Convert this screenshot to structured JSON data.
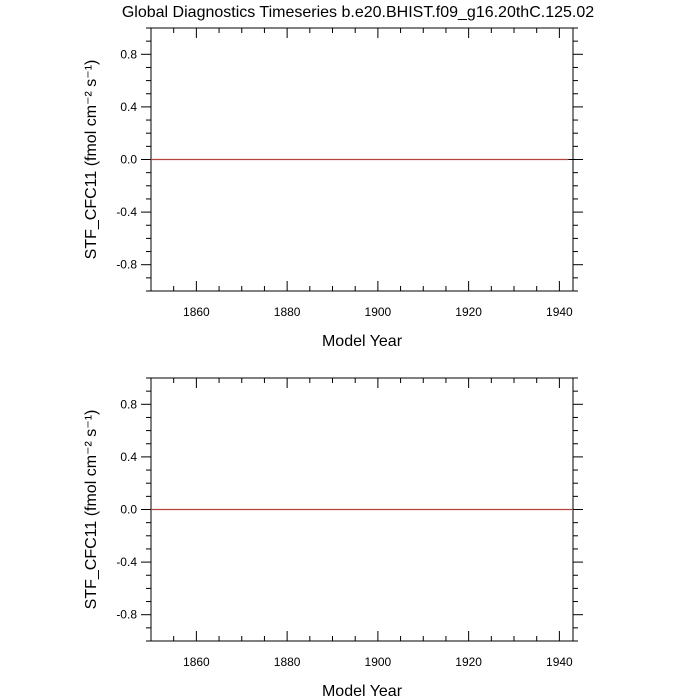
{
  "title": "Global Diagnostics Timeseries b.e20.BHIST.f09_g16.20thC.125.02",
  "chart_data": [
    {
      "type": "line",
      "xlabel": "Model Year",
      "ylabel": "STF_CFC11 (fmol cm⁻² s⁻¹)",
      "xlim": [
        1850,
        1943
      ],
      "ylim": [
        -1.0,
        1.0
      ],
      "xticks": [
        1860,
        1880,
        1900,
        1920,
        1940
      ],
      "xtick_labels": [
        "1860",
        "1880",
        "1900",
        "1920",
        "1940"
      ],
      "yticks": [
        -0.8,
        -0.4,
        0.0,
        0.4,
        0.8
      ],
      "ytick_labels": [
        "-0.8",
        "-0.4",
        "0.0",
        "0.4",
        "0.8"
      ],
      "reference_line": 0.0,
      "series": [
        {
          "color": "#b2443a",
          "x": [
            1850,
            1942
          ],
          "y": [
            0.0,
            0.0
          ]
        }
      ]
    },
    {
      "type": "line",
      "xlabel": "Model Year",
      "ylabel": "STF_CFC11 (fmol cm⁻² s⁻¹)",
      "xlim": [
        1850,
        1943
      ],
      "ylim": [
        -1.0,
        1.0
      ],
      "xticks": [
        1860,
        1880,
        1900,
        1920,
        1940
      ],
      "xtick_labels": [
        "1860",
        "1880",
        "1900",
        "1920",
        "1940"
      ],
      "yticks": [
        -0.8,
        -0.4,
        0.0,
        0.4,
        0.8
      ],
      "ytick_labels": [
        "-0.8",
        "-0.4",
        "0.0",
        "0.4",
        "0.8"
      ],
      "reference_line": 0.0,
      "series": [
        {
          "color": "#b2443a",
          "x": [
            1850,
            1943
          ],
          "y": [
            0.0,
            0.0
          ]
        }
      ]
    }
  ]
}
